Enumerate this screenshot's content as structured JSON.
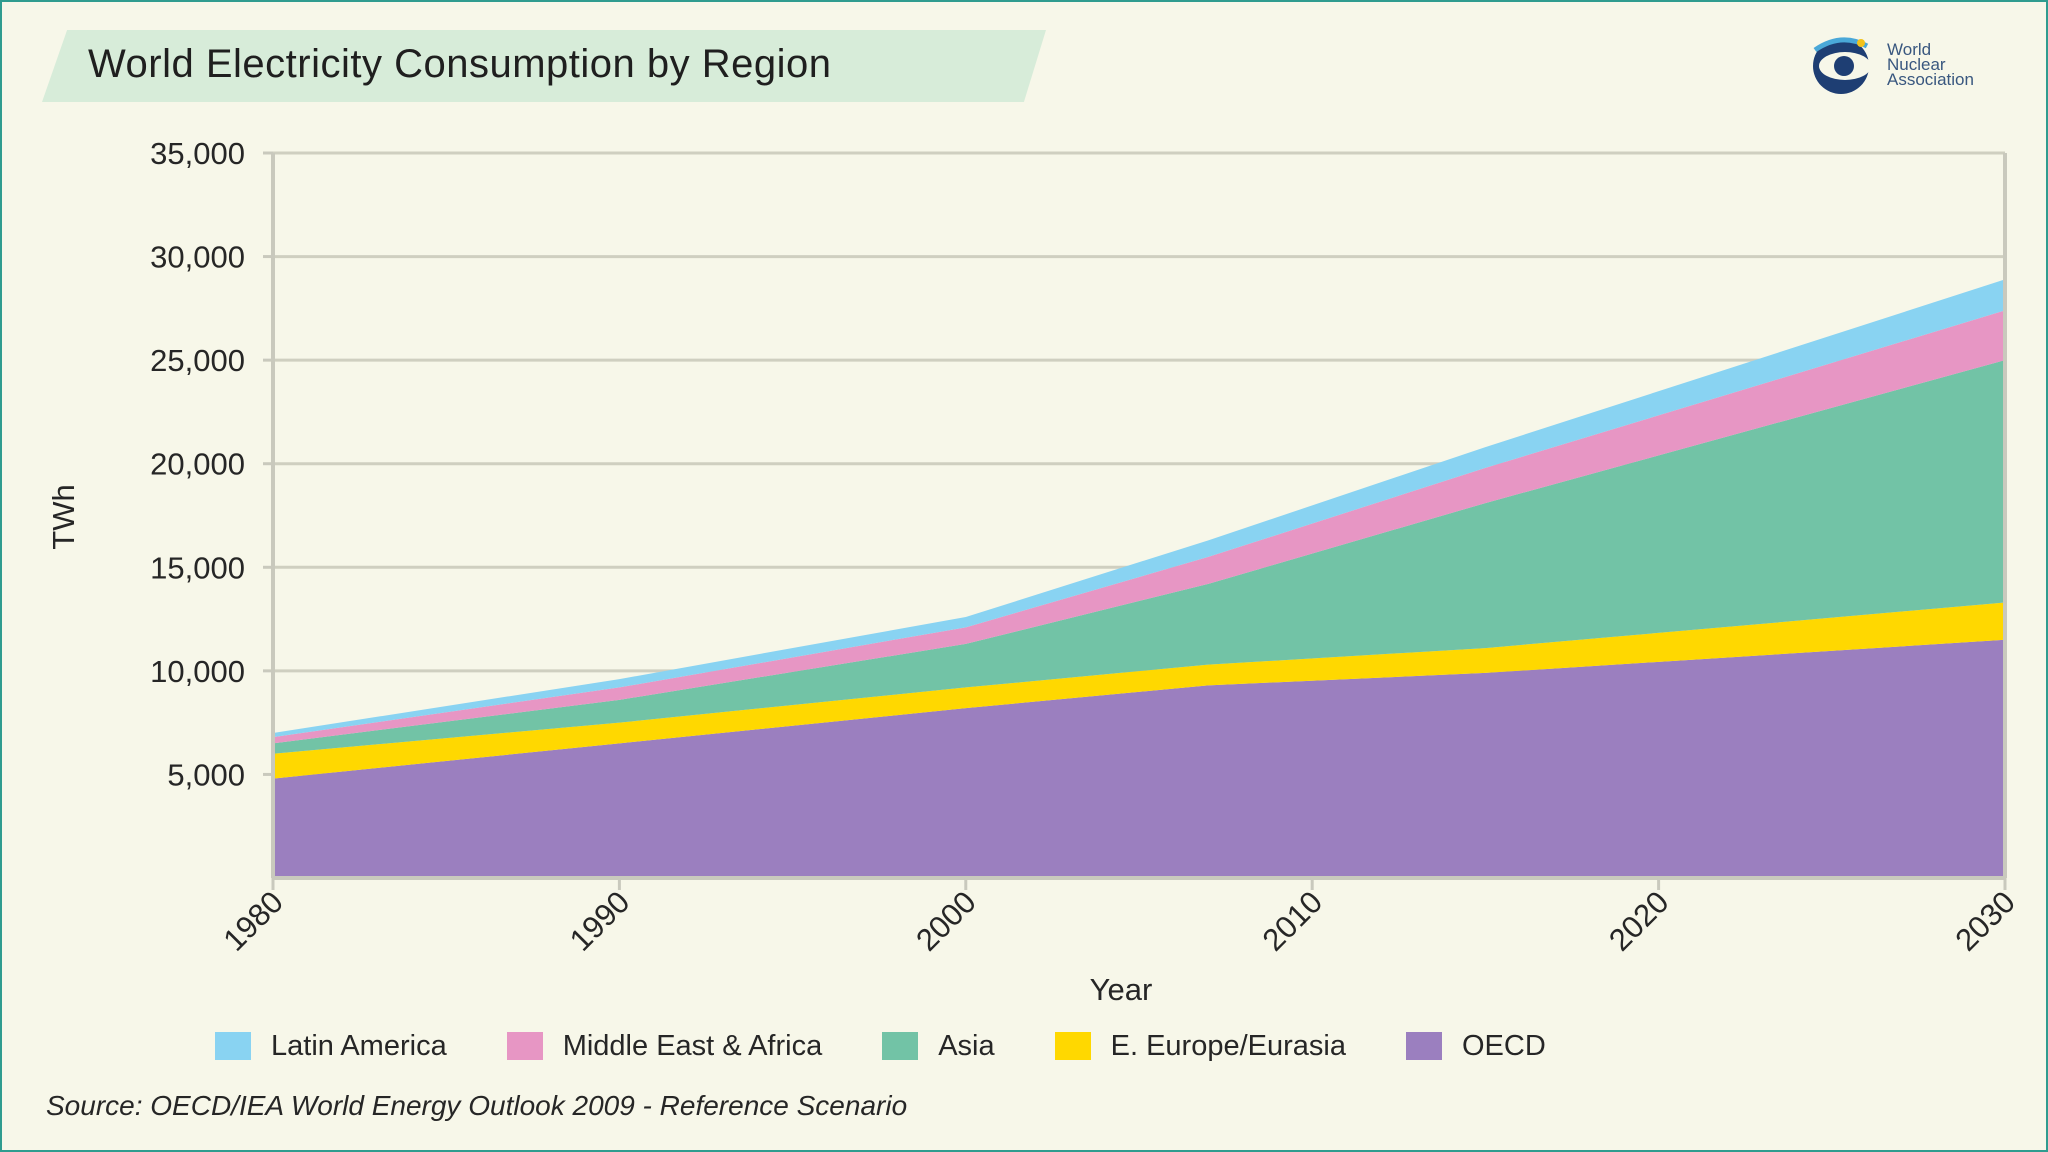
{
  "title": "World Electricity Consumption by Region",
  "logo": {
    "lines": [
      "World",
      "Nuclear",
      "Association"
    ],
    "icon": "wna-logo-icon"
  },
  "source": "Source: OECD/IEA World Energy Outlook 2009 - Reference Scenario",
  "chart_data": {
    "type": "area",
    "stacked": true,
    "x": [
      1980,
      1990,
      2000,
      2007,
      2015,
      2030
    ],
    "series": [
      {
        "name": "OECD",
        "color": "#9b7fbf",
        "values": [
          4800,
          6500,
          8200,
          9300,
          9900,
          11500
        ]
      },
      {
        "name": "E. Europe/Eurasia",
        "color": "#ffd800",
        "values": [
          1200,
          1000,
          1000,
          1000,
          1200,
          1800
        ]
      },
      {
        "name": "Asia",
        "color": "#72c3a6",
        "values": [
          500,
          1100,
          2100,
          3900,
          7000,
          11700
        ]
      },
      {
        "name": "Middle East & Africa",
        "color": "#e796c4",
        "values": [
          300,
          600,
          800,
          1300,
          1700,
          2400
        ]
      },
      {
        "name": "Latin America",
        "color": "#89d3f2",
        "values": [
          200,
          400,
          500,
          800,
          1000,
          1500
        ]
      }
    ],
    "legend_order": [
      "Latin America",
      "Middle East & Africa",
      "Asia",
      "E. Europe/Eurasia",
      "OECD"
    ],
    "xlabel": "Year",
    "ylabel": "TWh",
    "xticks": [
      1980,
      1990,
      2000,
      2010,
      2020,
      2030
    ],
    "yticks": [
      5000,
      10000,
      15000,
      20000,
      25000,
      30000,
      35000
    ],
    "ytick_labels": [
      "5,000",
      "10,000",
      "15,000",
      "20,000",
      "25,000",
      "30,000",
      "35,000"
    ],
    "xlim": [
      1980,
      2030
    ],
    "ylim": [
      0,
      35000
    ],
    "grid": true,
    "legend_position": "bottom"
  }
}
